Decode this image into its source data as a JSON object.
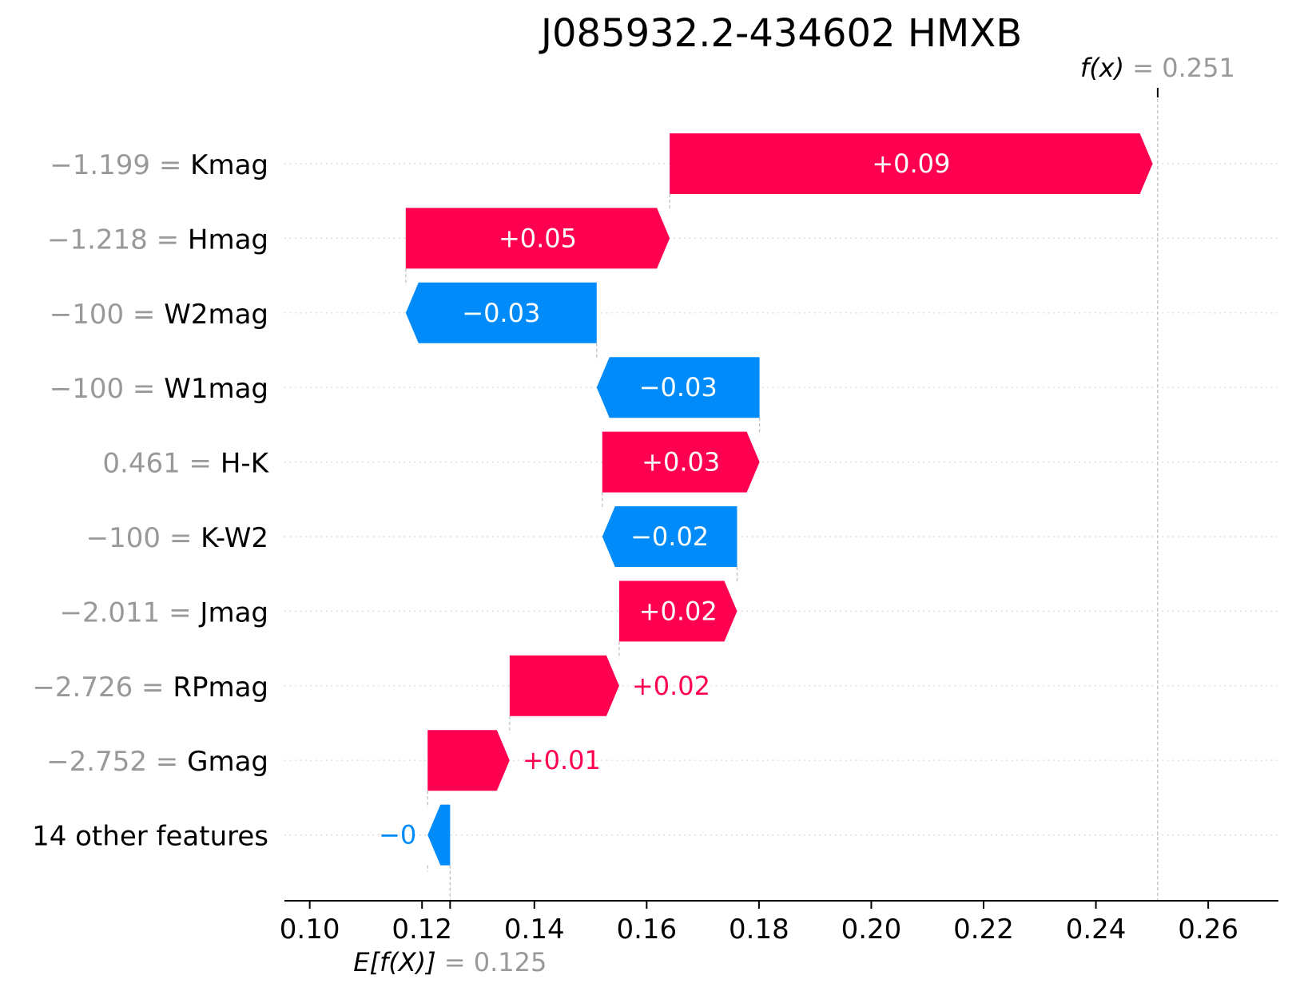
{
  "colors": {
    "positive": "#ff0051",
    "negative": "#008bfb",
    "value_gray": "#999999",
    "text": "#000000",
    "bar_text": "#ffffff",
    "guide": "#bbbbbb",
    "row_dots": "#cccccc"
  },
  "chart_data": {
    "type": "waterfall",
    "title": "J085932.2-434602 HMXB",
    "xlim": [
      0.0955,
      0.2725
    ],
    "xticks": [
      "0.10",
      "0.12",
      "0.14",
      "0.16",
      "0.18",
      "0.20",
      "0.22",
      "0.24",
      "0.26"
    ],
    "base_value": 0.125,
    "base_label": {
      "name": "E[f(X)]",
      "eq": "=",
      "value": "0.125"
    },
    "output_value": 0.251,
    "output_label": {
      "name": "f(x)",
      "eq": "=",
      "value": "0.251"
    },
    "features": [
      {
        "value": "−1.199",
        "name": "Kmag",
        "shap": 0.086,
        "label": "+0.09"
      },
      {
        "value": "−1.218",
        "name": "Hmag",
        "shap": 0.047,
        "label": "+0.05"
      },
      {
        "value": "−100",
        "name": "W2mag",
        "shap": -0.034,
        "label": "−0.03"
      },
      {
        "value": "−100",
        "name": "W1mag",
        "shap": -0.029,
        "label": "−0.03"
      },
      {
        "value": "0.461",
        "name": "H-K",
        "shap": 0.028,
        "label": "+0.03"
      },
      {
        "value": "−100",
        "name": "K-W2",
        "shap": -0.024,
        "label": "−0.02"
      },
      {
        "value": "−2.011",
        "name": "Jmag",
        "shap": 0.021,
        "label": "+0.02"
      },
      {
        "value": "−2.726",
        "name": "RPmag",
        "shap": 0.0195,
        "label": "+0.02"
      },
      {
        "value": "−2.752",
        "name": "Gmag",
        "shap": 0.0146,
        "label": "+0.01"
      },
      {
        "value": "",
        "name": "14 other features",
        "shap": -0.004,
        "label": "−0"
      }
    ]
  }
}
